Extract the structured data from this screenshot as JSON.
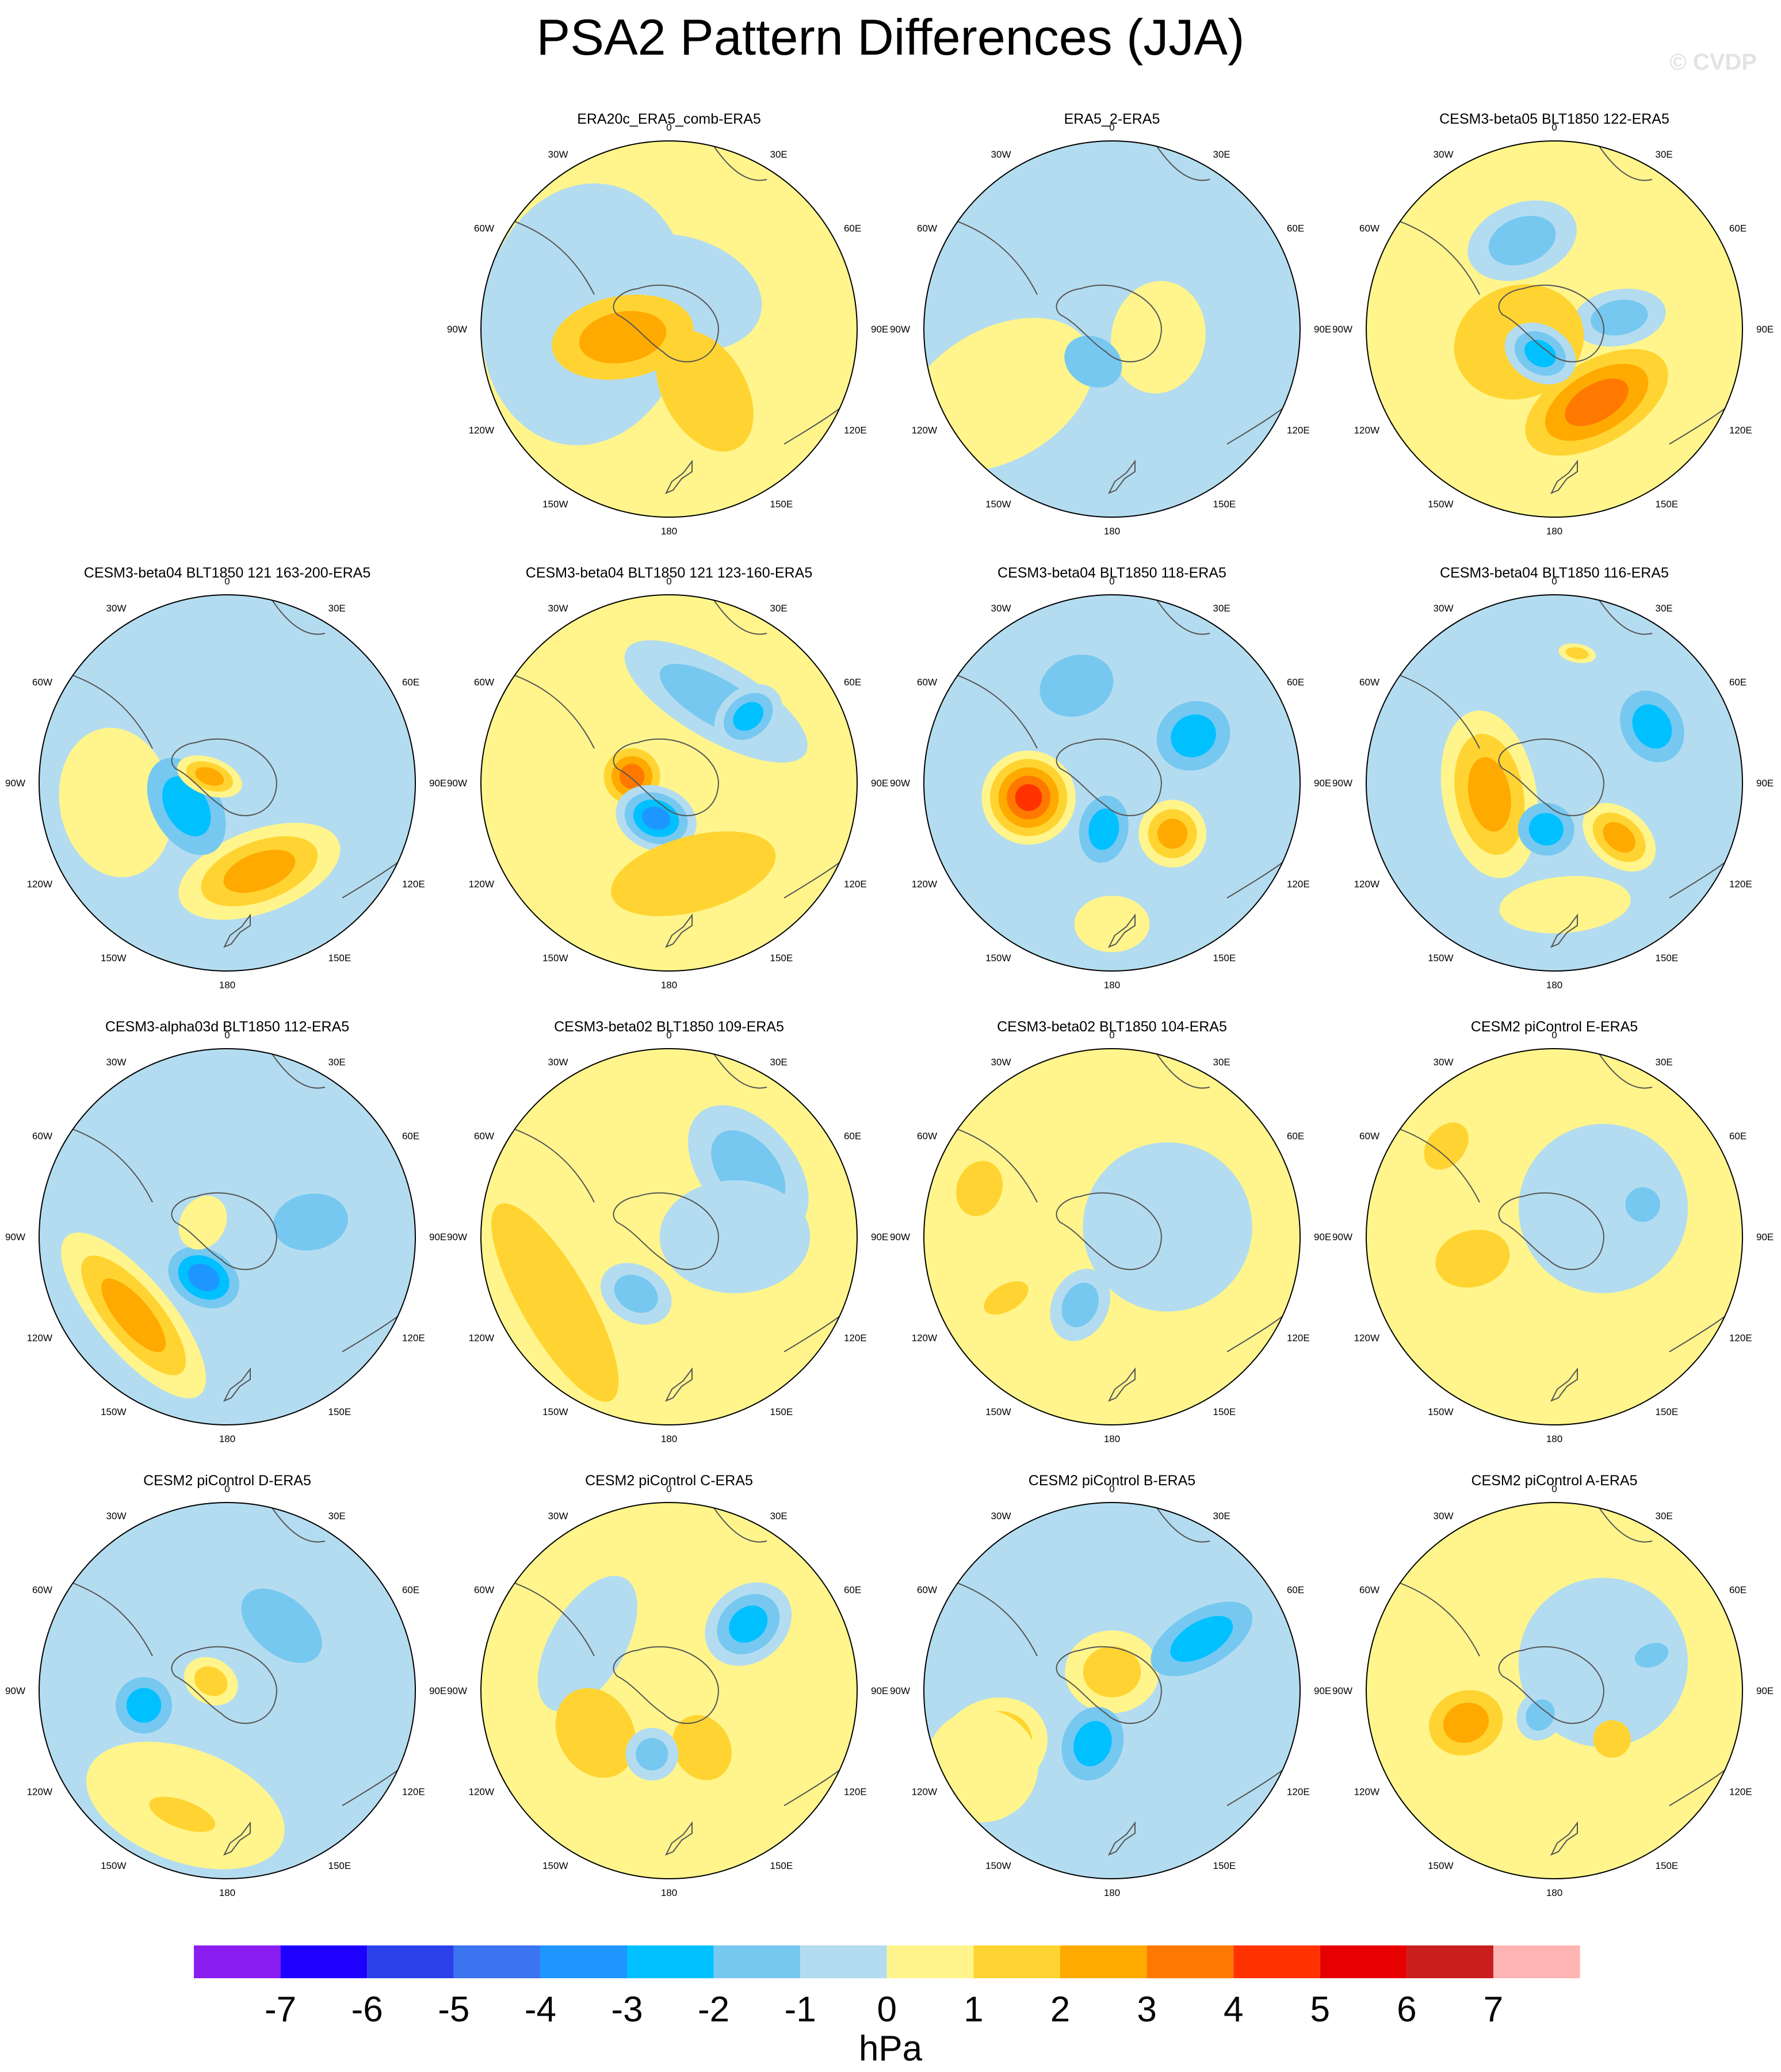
{
  "title": "PSA2 Pattern Differences (JJA)",
  "watermark": "© CVDP",
  "longitude_labels": [
    "0",
    "30E",
    "60E",
    "90E",
    "120E",
    "150E",
    "180",
    "150W",
    "120W",
    "90W",
    "60W",
    "30W"
  ],
  "panels": [
    {
      "title": "ERA20c_ERA5_comb-ERA5",
      "background": 1,
      "features": [
        {
          "lon": -80,
          "r": 0.45,
          "v": -1,
          "sx": 0.7,
          "sy": 0.55
        },
        {
          "lon": 15,
          "r": 0.2,
          "v": -1,
          "sx": 0.45,
          "sy": 0.3
        },
        {
          "lon": -100,
          "r": 0.25,
          "v": 3,
          "sx": 0.22,
          "sy": 0.38
        },
        {
          "lon": 150,
          "r": 0.38,
          "v": 2,
          "sx": 0.22,
          "sy": 0.35
        }
      ]
    },
    {
      "title": "ERA5_2-ERA5",
      "background": -1,
      "features": [
        {
          "lon": -120,
          "r": 0.7,
          "v": 1,
          "sx": 0.35,
          "sy": 0.55
        },
        {
          "lon": 100,
          "r": 0.25,
          "v": 1,
          "sx": 0.3,
          "sy": 0.25
        },
        {
          "lon": -150,
          "r": 0.2,
          "v": -2,
          "sx": 0.16,
          "sy": 0.13
        }
      ]
    },
    {
      "title": "CESM3-beta05 BLT1850 122-ERA5",
      "background": 1,
      "features": [
        {
          "lon": -20,
          "r": 0.5,
          "v": -2,
          "sx": 0.3,
          "sy": 0.2
        },
        {
          "lon": 80,
          "r": 0.35,
          "v": -2,
          "sx": 0.15,
          "sy": 0.25
        },
        {
          "lon": -110,
          "r": 0.2,
          "v": 2,
          "sx": 0.3,
          "sy": 0.35
        },
        {
          "lon": 150,
          "r": 0.45,
          "v": 4,
          "sx": 0.42,
          "sy": 0.22
        },
        {
          "lon": -150,
          "r": 0.15,
          "v": -3,
          "sx": 0.2,
          "sy": 0.15
        }
      ]
    },
    {
      "title": "CESM3-beta04 BLT1850 121 163-200-ERA5",
      "background": -1,
      "features": [
        {
          "lon": -100,
          "r": 0.6,
          "v": 1,
          "sx": 0.4,
          "sy": 0.3
        },
        {
          "lon": 160,
          "r": 0.5,
          "v": 3,
          "sx": 0.45,
          "sy": 0.22
        },
        {
          "lon": -120,
          "r": 0.25,
          "v": -3,
          "sx": 0.28,
          "sy": 0.18
        },
        {
          "lon": -70,
          "r": 0.1,
          "v": 3,
          "sx": 0.1,
          "sy": 0.18
        }
      ]
    },
    {
      "title": "CESM3-beta04 BLT1850 121 123-160-ERA5",
      "background": 1,
      "features": [
        {
          "lon": 30,
          "r": 0.5,
          "v": -2,
          "sx": 0.55,
          "sy": 0.2
        },
        {
          "lon": 50,
          "r": 0.55,
          "v": -3,
          "sx": 0.15,
          "sy": 0.2
        },
        {
          "lon": -80,
          "r": 0.2,
          "v": 4,
          "sx": 0.15,
          "sy": 0.15
        },
        {
          "lon": -160,
          "r": 0.2,
          "v": -4,
          "sx": 0.22,
          "sy": 0.17
        },
        {
          "lon": 165,
          "r": 0.5,
          "v": 2,
          "sx": 0.45,
          "sy": 0.2
        }
      ]
    },
    {
      "title": "CESM3-beta04 BLT1850 118-ERA5",
      "background": -1,
      "features": [
        {
          "lon": -100,
          "r": 0.45,
          "v": 5,
          "sx": 0.25,
          "sy": 0.25
        },
        {
          "lon": 130,
          "r": 0.42,
          "v": 3,
          "sx": 0.18,
          "sy": 0.18
        },
        {
          "lon": 60,
          "r": 0.5,
          "v": -3,
          "sx": 0.18,
          "sy": 0.2
        },
        {
          "lon": -20,
          "r": 0.55,
          "v": -2,
          "sx": 0.2,
          "sy": 0.16
        },
        {
          "lon": -170,
          "r": 0.25,
          "v": -3,
          "sx": 0.13,
          "sy": 0.18
        },
        {
          "lon": 180,
          "r": 0.75,
          "v": 1,
          "sx": 0.2,
          "sy": 0.15
        }
      ]
    },
    {
      "title": "CESM3-beta04 BLT1850 116-ERA5",
      "background": -1,
      "features": [
        {
          "lon": -100,
          "r": 0.35,
          "v": 3,
          "sx": 0.45,
          "sy": 0.25
        },
        {
          "lon": 130,
          "r": 0.45,
          "v": 3,
          "sx": 0.15,
          "sy": 0.22
        },
        {
          "lon": 60,
          "r": 0.6,
          "v": -3,
          "sx": 0.2,
          "sy": 0.16
        },
        {
          "lon": -170,
          "r": 0.25,
          "v": -3,
          "sx": 0.15,
          "sy": 0.14
        },
        {
          "lon": 175,
          "r": 0.65,
          "v": 1,
          "sx": 0.35,
          "sy": 0.15
        },
        {
          "lon": 10,
          "r": 0.7,
          "v": 2,
          "sx": 0.1,
          "sy": 0.05
        }
      ]
    },
    {
      "title": "CESM3-alpha03d BLT1850 112-ERA5",
      "background": -1,
      "features": [
        {
          "lon": -130,
          "r": 0.65,
          "v": 3,
          "sx": 0.55,
          "sy": 0.2
        },
        {
          "lon": -150,
          "r": 0.25,
          "v": -4,
          "sx": 0.2,
          "sy": 0.15
        },
        {
          "lon": 80,
          "r": 0.45,
          "v": -2,
          "sx": 0.15,
          "sy": 0.2
        },
        {
          "lon": -60,
          "r": 0.15,
          "v": 1,
          "sx": 0.15,
          "sy": 0.12
        }
      ]
    },
    {
      "title": "CESM3-beta02 BLT1850 109-ERA5",
      "background": 1,
      "features": [
        {
          "lon": 50,
          "r": 0.55,
          "v": -2,
          "sx": 0.4,
          "sy": 0.25
        },
        {
          "lon": -150,
          "r": 0.35,
          "v": -2,
          "sx": 0.2,
          "sy": 0.15
        },
        {
          "lon": -120,
          "r": 0.7,
          "v": 2,
          "sx": 0.6,
          "sy": 0.18
        },
        {
          "lon": 90,
          "r": 0.35,
          "v": -1,
          "sx": 0.3,
          "sy": 0.4
        }
      ]
    },
    {
      "title": "CESM3-beta02 BLT1850 104-ERA5",
      "background": 1,
      "features": [
        {
          "lon": 80,
          "r": 0.3,
          "v": -1,
          "sx": 0.45,
          "sy": 0.45
        },
        {
          "lon": -155,
          "r": 0.4,
          "v": -2,
          "sx": 0.15,
          "sy": 0.2
        },
        {
          "lon": -70,
          "r": 0.75,
          "v": 2,
          "sx": 0.15,
          "sy": 0.12
        },
        {
          "lon": -120,
          "r": 0.65,
          "v": 2,
          "sx": 0.07,
          "sy": 0.13
        }
      ]
    },
    {
      "title": "CESM2 piControl E-ERA5",
      "background": 1,
      "features": [
        {
          "lon": 60,
          "r": 0.3,
          "v": -1,
          "sx": 0.45,
          "sy": 0.45
        },
        {
          "lon": -105,
          "r": 0.45,
          "v": 2,
          "sx": 0.15,
          "sy": 0.2
        },
        {
          "lon": -50,
          "r": 0.75,
          "v": 2,
          "sx": 0.14,
          "sy": 0.1
        },
        {
          "lon": 70,
          "r": 0.5,
          "v": -2,
          "sx": 0.15,
          "sy": 0.15
        }
      ]
    },
    {
      "title": "CESM2 piControl D-ERA5",
      "background": -1,
      "features": [
        {
          "lon": -160,
          "r": 0.65,
          "v": 1,
          "sx": 0.55,
          "sy": 0.3
        },
        {
          "lon": -160,
          "r": 0.7,
          "v": 2,
          "sx": 0.3,
          "sy": 0.12
        },
        {
          "lon": -60,
          "r": 0.1,
          "v": 2,
          "sx": 0.12,
          "sy": 0.15
        },
        {
          "lon": -100,
          "r": 0.45,
          "v": -3,
          "sx": 0.15,
          "sy": 0.15
        },
        {
          "lon": 40,
          "r": 0.45,
          "v": -2,
          "sx": 0.25,
          "sy": 0.15
        }
      ]
    },
    {
      "title": "CESM2 piControl C-ERA5",
      "background": 1,
      "features": [
        {
          "lon": 50,
          "r": 0.55,
          "v": -3,
          "sx": 0.2,
          "sy": 0.25
        },
        {
          "lon": -60,
          "r": 0.5,
          "v": -1,
          "sx": 0.4,
          "sy": 0.2
        },
        {
          "lon": -120,
          "r": 0.45,
          "v": 2,
          "sx": 0.25,
          "sy": 0.2
        },
        {
          "lon": 150,
          "r": 0.35,
          "v": 2,
          "sx": 0.15,
          "sy": 0.18
        },
        {
          "lon": -165,
          "r": 0.35,
          "v": -2,
          "sx": 0.14,
          "sy": 0.14
        }
      ]
    },
    {
      "title": "CESM2 piControl B-ERA5",
      "background": -1,
      "features": [
        {
          "lon": -115,
          "r": 0.7,
          "v": 3,
          "sx": 0.25,
          "sy": 0.3
        },
        {
          "lon": 0,
          "r": 0.1,
          "v": 2,
          "sx": 0.25,
          "sy": 0.22
        },
        {
          "lon": -160,
          "r": 0.3,
          "v": -3,
          "sx": 0.16,
          "sy": 0.2
        },
        {
          "lon": 60,
          "r": 0.55,
          "v": -3,
          "sx": 0.15,
          "sy": 0.3
        },
        {
          "lon": -120,
          "r": 0.8,
          "v": 1,
          "sx": 0.3,
          "sy": 0.3
        }
      ]
    },
    {
      "title": "CESM2 piControl A-ERA5",
      "background": 1,
      "features": [
        {
          "lon": 60,
          "r": 0.3,
          "v": -1,
          "sx": 0.45,
          "sy": 0.45
        },
        {
          "lon": -110,
          "r": 0.5,
          "v": 3,
          "sx": 0.17,
          "sy": 0.2
        },
        {
          "lon": -150,
          "r": 0.15,
          "v": -2,
          "sx": 0.12,
          "sy": 0.14
        },
        {
          "lon": 130,
          "r": 0.4,
          "v": 2,
          "sx": 0.1,
          "sy": 0.1
        },
        {
          "lon": 70,
          "r": 0.55,
          "v": -2,
          "sx": 0.1,
          "sy": 0.15
        }
      ]
    }
  ],
  "colorbar": {
    "unit": "hPa",
    "tick_labels": [
      "-7",
      "-6",
      "-5",
      "-4",
      "-3",
      "-2",
      "-1",
      "0",
      "1",
      "2",
      "3",
      "4",
      "5",
      "6",
      "7"
    ],
    "colors": [
      "#8a1ef0",
      "#1e00ff",
      "#2a40e8",
      "#3a74ee",
      "#1e96ff",
      "#00c0ff",
      "#76c8f0",
      "#b4dcf0",
      "#fff58c",
      "#ffd432",
      "#ffaa00",
      "#ff7800",
      "#ff3200",
      "#e60000",
      "#c81e1e",
      "#ffb4b4"
    ]
  }
}
